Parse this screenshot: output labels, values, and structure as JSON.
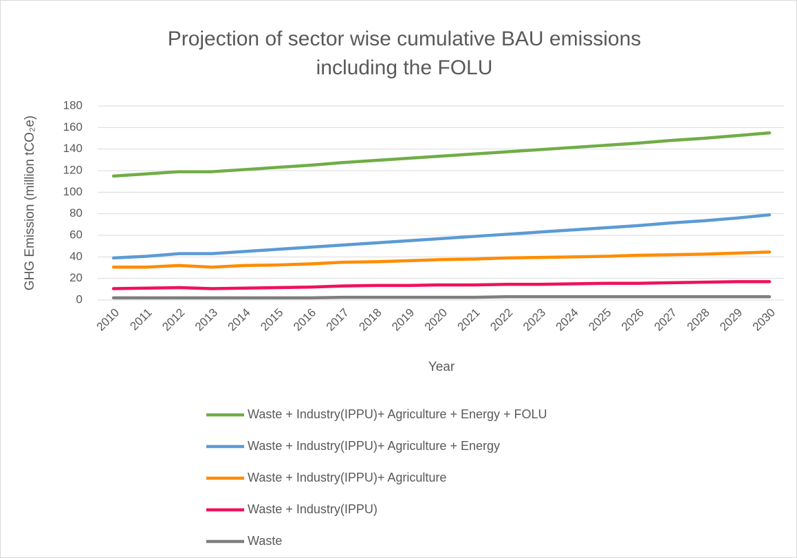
{
  "chart_data": {
    "type": "line",
    "title": [
      "Projection of sector wise cumulative BAU emissions",
      "including the FOLU"
    ],
    "x_label": "Year",
    "y_label": "GHG Emission (million tCO₂e)",
    "categories": [
      "2010",
      "2011",
      "2012",
      "2013",
      "2014",
      "2015",
      "2016",
      "2017",
      "2018",
      "2019",
      "2020",
      "2021",
      "2022",
      "2023",
      "2024",
      "2025",
      "2026",
      "2027",
      "2028",
      "2029",
      "2030"
    ],
    "ylim": [
      0,
      180
    ],
    "yticks": [
      0,
      20,
      40,
      60,
      80,
      100,
      120,
      140,
      160,
      180
    ],
    "grid": true,
    "legend": "bottom",
    "series": [
      {
        "name": "Waste + Industry(IPPU)+ Agriculture + Energy + FOLU",
        "color": "#70ad47",
        "values": [
          115,
          117,
          119,
          119,
          121,
          123,
          125,
          127.5,
          129.5,
          131.5,
          133.5,
          135.5,
          137.5,
          139.5,
          141.5,
          143.5,
          145.5,
          148,
          150,
          152.5,
          155
        ]
      },
      {
        "name": "Waste + Industry(IPPU)+ Agriculture + Energy",
        "color": "#5b9bd5",
        "values": [
          39,
          40.5,
          43,
          43,
          45,
          47,
          49,
          51,
          53,
          55,
          57,
          59,
          61,
          63,
          65,
          67,
          69,
          71.5,
          73.5,
          76,
          79
        ]
      },
      {
        "name": "Waste + Industry(IPPU)+ Agriculture",
        "color": "#ff8c00",
        "values": [
          30.5,
          30.5,
          32,
          30.5,
          32,
          32.5,
          33.5,
          35,
          35.5,
          36.5,
          37.5,
          38,
          39,
          39.5,
          40,
          40.5,
          41.5,
          42,
          42.5,
          43.5,
          44.5
        ]
      },
      {
        "name": "Waste + Industry(IPPU)",
        "color": "#f0115d",
        "values": [
          10.5,
          11,
          11.5,
          10.5,
          11,
          11.5,
          12,
          13,
          13.5,
          13.5,
          14,
          14,
          14.5,
          14.5,
          15,
          15.5,
          15.5,
          16,
          16.5,
          17,
          17
        ]
      },
      {
        "name": "Waste",
        "color": "#7f7f7f",
        "values": [
          2,
          2,
          2,
          2,
          2,
          2,
          2,
          2.5,
          2.5,
          2.5,
          2.5,
          2.5,
          3,
          3,
          3,
          3,
          3,
          3,
          3,
          3,
          3
        ]
      }
    ]
  }
}
